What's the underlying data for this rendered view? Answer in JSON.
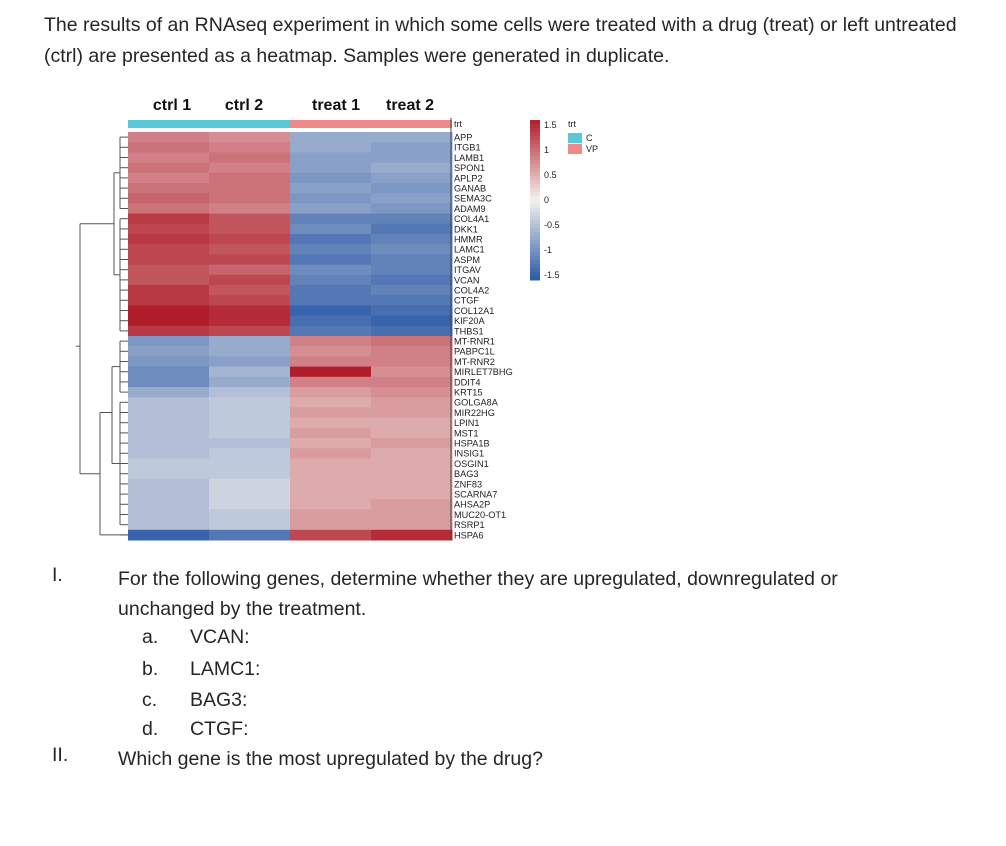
{
  "intro_text": "The results of an RNAseq experiment in which some cells were treated with a drug (treat) or left untreated (ctrl) are presented as a heatmap. Samples were generated in duplicate.",
  "chart_data": {
    "type": "heatmap",
    "columns": [
      "ctrl 1",
      "ctrl 2",
      "treat 1",
      "treat 2"
    ],
    "annotation_row_label": "trt",
    "annotation_groups": [
      {
        "name": "C",
        "color": "#5bc8d8"
      },
      {
        "name": "VP",
        "color": "#f08a8a"
      }
    ],
    "column_groups": [
      "C",
      "C",
      "VP",
      "VP"
    ],
    "genes": [
      "APP",
      "ITGB1",
      "LAMB1",
      "SPON1",
      "APLP2",
      "GANAB",
      "SEMA3C",
      "ADAM9",
      "COL4A1",
      "DKK1",
      "HMMR",
      "LAMC1",
      "ASPM",
      "ITGAV",
      "VCAN",
      "COL4A2",
      "CTGF",
      "COL12A1",
      "KIF20A",
      "THBS1",
      "MT-RNR1",
      "PABPC1L",
      "MT-RNR2",
      "MIRLET7BHG",
      "DDIT4",
      "KRT15",
      "GOLGA8A",
      "MIR22HG",
      "LPIN1",
      "MST1",
      "HSPA1B",
      "INSIG1",
      "OSGIN1",
      "BAG3",
      "ZNF83",
      "SCARNA7",
      "AHSA2P",
      "MUC20-OT1",
      "RSRP1",
      "HSPA6"
    ],
    "values": [
      [
        0.8,
        0.7,
        -0.7,
        -0.7
      ],
      [
        0.9,
        0.8,
        -0.7,
        -0.8
      ],
      [
        0.8,
        0.9,
        -0.8,
        -0.8
      ],
      [
        0.9,
        0.8,
        -0.8,
        -0.7
      ],
      [
        0.8,
        0.9,
        -0.9,
        -0.8
      ],
      [
        0.9,
        0.9,
        -0.8,
        -0.9
      ],
      [
        1.0,
        0.9,
        -0.9,
        -0.8
      ],
      [
        0.9,
        0.8,
        -0.8,
        -0.9
      ],
      [
        1.3,
        1.1,
        -1.1,
        -1.1
      ],
      [
        1.2,
        1.1,
        -1.0,
        -1.2
      ],
      [
        1.3,
        1.2,
        -1.2,
        -1.1
      ],
      [
        1.2,
        1.1,
        -1.1,
        -1.0
      ],
      [
        1.2,
        1.2,
        -1.2,
        -1.1
      ],
      [
        1.1,
        1.0,
        -1.0,
        -1.1
      ],
      [
        1.1,
        1.2,
        -1.1,
        -1.2
      ],
      [
        1.3,
        1.1,
        -1.2,
        -1.1
      ],
      [
        1.3,
        1.2,
        -1.2,
        -1.2
      ],
      [
        1.5,
        1.4,
        -1.4,
        -1.3
      ],
      [
        1.5,
        1.4,
        -1.3,
        -1.4
      ],
      [
        1.3,
        1.2,
        -1.2,
        -1.3
      ],
      [
        -0.9,
        -0.7,
        0.8,
        0.9
      ],
      [
        -0.8,
        -0.7,
        0.7,
        0.8
      ],
      [
        -0.9,
        -0.8,
        0.8,
        0.8
      ],
      [
        -1.0,
        -0.6,
        1.5,
        0.7
      ],
      [
        -1.0,
        -0.7,
        0.8,
        0.8
      ],
      [
        -0.7,
        -0.5,
        0.6,
        0.7
      ],
      [
        -0.5,
        -0.4,
        0.5,
        0.6
      ],
      [
        -0.5,
        -0.4,
        0.6,
        0.6
      ],
      [
        -0.5,
        -0.4,
        0.5,
        0.5
      ],
      [
        -0.5,
        -0.4,
        0.6,
        0.5
      ],
      [
        -0.5,
        -0.5,
        0.5,
        0.6
      ],
      [
        -0.5,
        -0.4,
        0.6,
        0.5
      ],
      [
        -0.4,
        -0.4,
        0.5,
        0.5
      ],
      [
        -0.4,
        -0.4,
        0.5,
        0.5
      ],
      [
        -0.5,
        -0.3,
        0.5,
        0.5
      ],
      [
        -0.5,
        -0.3,
        0.5,
        0.5
      ],
      [
        -0.5,
        -0.3,
        0.5,
        0.6
      ],
      [
        -0.5,
        -0.4,
        0.6,
        0.6
      ],
      [
        -0.5,
        -0.4,
        0.6,
        0.6
      ],
      [
        -1.4,
        -1.2,
        1.2,
        1.4
      ]
    ],
    "color_scale": {
      "min": -1.5,
      "max": 1.5,
      "ticks": [
        "1.5",
        "1",
        "0.5",
        "0",
        "-0.5",
        "-1",
        "-1.5"
      ],
      "low_color": "#2b5aa6",
      "mid_color": "#f5f2ef",
      "high_color": "#b01d2a"
    }
  },
  "questions": [
    {
      "number": "I.",
      "text": "For the following genes, determine whether they are upregulated, downregulated or unchanged by the treatment.",
      "items": [
        {
          "letter": "a.",
          "name": "VCAN:"
        },
        {
          "letter": "b.",
          "name": "LAMC1:"
        },
        {
          "letter": "c.",
          "name": "BAG3:"
        },
        {
          "letter": "d.",
          "name": "CTGF:"
        }
      ]
    },
    {
      "number": "II.",
      "text": "Which gene is the most upregulated by the drug?"
    }
  ]
}
